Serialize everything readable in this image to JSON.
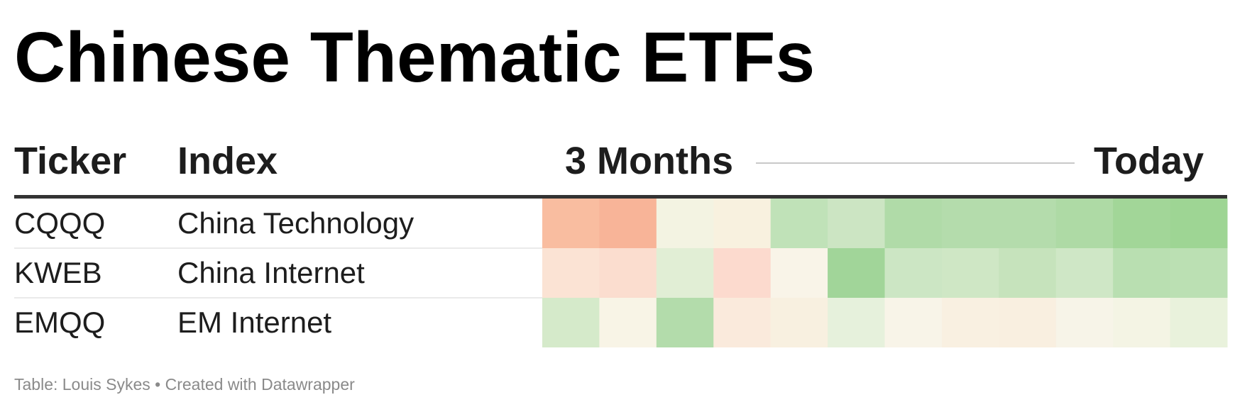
{
  "title": "Chinese Thematic ETFs",
  "header": {
    "ticker": "Ticker",
    "index": "Index",
    "start": "3 Months",
    "end": "Today"
  },
  "rows": [
    {
      "ticker": "CQQQ",
      "index": "China Technology",
      "colors": [
        "#f9bda0",
        "#f8b498",
        "#f3f3e2",
        "#f8f1df",
        "#c0e2b8",
        "#cce5c3",
        "#b0dba8",
        "#b4dcac",
        "#b4dcac",
        "#aedaa5",
        "#a2d698",
        "#9ed594"
      ]
    },
    {
      "ticker": "KWEB",
      "index": "China Internet",
      "colors": [
        "#fbe3d4",
        "#fbddcf",
        "#e1eed5",
        "#fcdace",
        "#f9f4e8",
        "#a1d599",
        "#cce6c4",
        "#cfe7c5",
        "#c6e3bc",
        "#cfe7c6",
        "#b9dfb1",
        "#bbe0b3"
      ]
    },
    {
      "ticker": "EMQQ",
      "index": "EM Internet",
      "colors": [
        "#d5eaca",
        "#f8f4e6",
        "#b3dcab",
        "#faeadc",
        "#f8f0e0",
        "#e6f1dc",
        "#f8f4e8",
        "#f9f0e1",
        "#f9efe0",
        "#f7f4e8",
        "#f4f4e4",
        "#e9f2dc"
      ]
    }
  ],
  "footer": "Table: Louis Sykes • Created with Datawrapper"
}
